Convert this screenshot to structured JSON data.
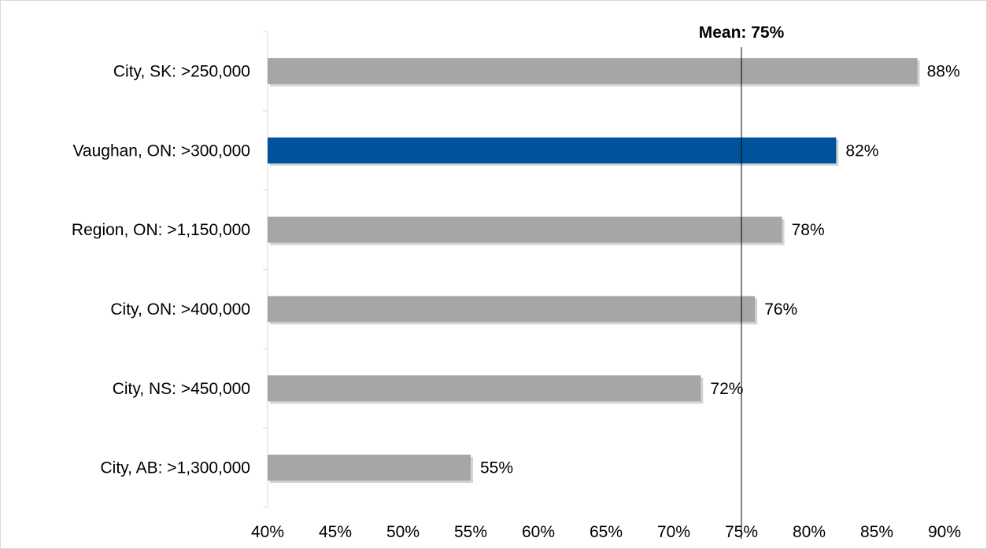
{
  "chart_data": {
    "type": "bar",
    "orientation": "horizontal",
    "title": "",
    "xlabel": "",
    "ylabel": "",
    "categories": [
      "City, SK: >250,000",
      "Vaughan, ON: >300,000",
      "Region, ON: >1,150,000",
      "City, ON: >400,000",
      "City, NS: >450,000",
      "City, AB: >1,300,000"
    ],
    "values": [
      88,
      82,
      78,
      76,
      72,
      55
    ],
    "value_labels": [
      "88%",
      "82%",
      "78%",
      "76%",
      "72%",
      "55%"
    ],
    "highlight_index": 1,
    "xlim": [
      40,
      90
    ],
    "xticks": [
      40,
      45,
      50,
      55,
      60,
      65,
      70,
      75,
      80,
      85,
      90
    ],
    "xtick_labels": [
      "40%",
      "45%",
      "50%",
      "55%",
      "60%",
      "65%",
      "70%",
      "75%",
      "80%",
      "85%",
      "90%"
    ],
    "grid": false,
    "legend": "none",
    "reference_line": {
      "value": 75,
      "label": "Mean: 75%"
    },
    "colors": {
      "bar": "#a6a6a6",
      "highlight": "#00539b",
      "axis": "#d9d9d9",
      "mean_line": "#000000"
    }
  }
}
